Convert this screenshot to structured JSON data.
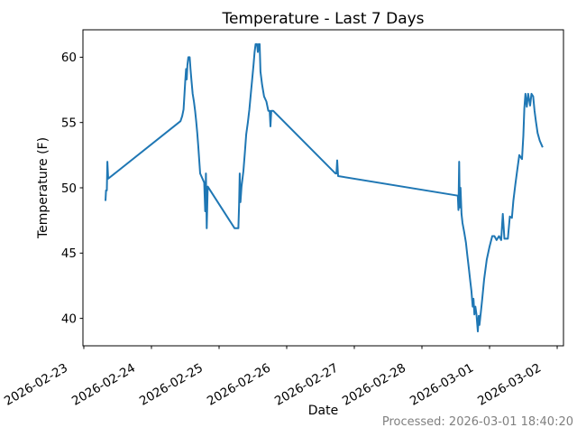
{
  "figure": {
    "title": "Temperature - Last 7 Days",
    "xlabel": "Date",
    "ylabel": "Temperature (F)",
    "annotation": "Processed: 2026-03-01 18:40:20"
  },
  "colors": {
    "line": "#1f77b4",
    "spine": "#000000",
    "text": "#000000",
    "muted_text": "#808080",
    "background": "#ffffff"
  },
  "chart_data": {
    "type": "line",
    "title": "Temperature - Last 7 Days",
    "xlabel": "Date",
    "ylabel": "Temperature (F)",
    "annotation": "Processed: 2026-03-01 18:40:20",
    "grid": false,
    "legend_position": "none",
    "line_color": "#1f77b4",
    "x_unit": "days since 2026-02-23 00:00",
    "x_tick_labels": [
      "2026-02-23",
      "2026-02-24",
      "2026-02-25",
      "2026-02-26",
      "2026-02-27",
      "2026-02-28",
      "2026-03-01",
      "2026-03-02"
    ],
    "x_tick_positions": [
      0,
      1,
      2,
      3,
      4,
      5,
      6,
      7
    ],
    "y_ticks": [
      40,
      45,
      50,
      55,
      60
    ],
    "ylim": [
      37.9,
      62.1
    ],
    "xlim": [
      -0.013,
      7.093
    ],
    "series": [
      {
        "name": "temperature_f",
        "points": [
          [
            0.32,
            49.0
          ],
          [
            0.328,
            49.8
          ],
          [
            0.34,
            49.8
          ],
          [
            0.348,
            52.0
          ],
          [
            0.36,
            50.7
          ],
          [
            1.43,
            55.1
          ],
          [
            1.455,
            55.5
          ],
          [
            1.475,
            56.0
          ],
          [
            1.5,
            58.2
          ],
          [
            1.512,
            59.1
          ],
          [
            1.522,
            58.3
          ],
          [
            1.532,
            59.4
          ],
          [
            1.545,
            60.0
          ],
          [
            1.565,
            60.0
          ],
          [
            1.578,
            59.1
          ],
          [
            1.592,
            58.2
          ],
          [
            1.61,
            57.2
          ],
          [
            1.628,
            56.6
          ],
          [
            1.645,
            55.9
          ],
          [
            1.662,
            55.1
          ],
          [
            1.678,
            54.2
          ],
          [
            1.692,
            53.2
          ],
          [
            1.706,
            52.2
          ],
          [
            1.72,
            51.1
          ],
          [
            1.78,
            50.4
          ],
          [
            1.795,
            48.2
          ],
          [
            1.806,
            51.1
          ],
          [
            1.818,
            46.9
          ],
          [
            1.832,
            50.1
          ],
          [
            2.23,
            46.9
          ],
          [
            2.285,
            46.9
          ],
          [
            2.296,
            48.7
          ],
          [
            2.306,
            51.1
          ],
          [
            2.316,
            48.9
          ],
          [
            2.332,
            50.1
          ],
          [
            2.36,
            51.3
          ],
          [
            2.382,
            52.7
          ],
          [
            2.402,
            54.1
          ],
          [
            2.425,
            55.0
          ],
          [
            2.448,
            56.0
          ],
          [
            2.47,
            57.2
          ],
          [
            2.49,
            58.3
          ],
          [
            2.51,
            59.4
          ],
          [
            2.525,
            60.4
          ],
          [
            2.54,
            61.0
          ],
          [
            2.562,
            61.0
          ],
          [
            2.574,
            60.4
          ],
          [
            2.586,
            61.0
          ],
          [
            2.6,
            61.0
          ],
          [
            2.612,
            58.9
          ],
          [
            2.636,
            57.9
          ],
          [
            2.665,
            57.0
          ],
          [
            2.7,
            56.6
          ],
          [
            2.728,
            55.9
          ],
          [
            2.748,
            55.9
          ],
          [
            2.76,
            54.7
          ],
          [
            2.772,
            55.9
          ],
          [
            2.8,
            55.9
          ],
          [
            3.72,
            51.1
          ],
          [
            3.736,
            51.1
          ],
          [
            3.746,
            52.1
          ],
          [
            3.76,
            50.9
          ],
          [
            5.53,
            49.4
          ],
          [
            5.54,
            48.3
          ],
          [
            5.55,
            52.0
          ],
          [
            5.56,
            48.5
          ],
          [
            5.57,
            50.0
          ],
          [
            5.585,
            48.0
          ],
          [
            5.6,
            47.3
          ],
          [
            5.625,
            46.6
          ],
          [
            5.65,
            45.8
          ],
          [
            5.672,
            44.8
          ],
          [
            5.694,
            43.8
          ],
          [
            5.716,
            42.8
          ],
          [
            5.732,
            42.1
          ],
          [
            5.75,
            40.9
          ],
          [
            5.762,
            41.5
          ],
          [
            5.776,
            40.3
          ],
          [
            5.79,
            40.9
          ],
          [
            5.806,
            40.3
          ],
          [
            5.826,
            39.0
          ],
          [
            5.84,
            40.2
          ],
          [
            5.85,
            39.5
          ],
          [
            5.872,
            40.5
          ],
          [
            5.892,
            41.5
          ],
          [
            5.92,
            43.0
          ],
          [
            5.958,
            44.5
          ],
          [
            6.0,
            45.5
          ],
          [
            6.04,
            46.3
          ],
          [
            6.072,
            46.3
          ],
          [
            6.104,
            46.0
          ],
          [
            6.14,
            46.3
          ],
          [
            6.172,
            46.0
          ],
          [
            6.196,
            48.0
          ],
          [
            6.22,
            46.1
          ],
          [
            6.27,
            46.1
          ],
          [
            6.3,
            47.8
          ],
          [
            6.33,
            47.7
          ],
          [
            6.352,
            49.0
          ],
          [
            6.38,
            50.2
          ],
          [
            6.41,
            51.4
          ],
          [
            6.44,
            52.5
          ],
          [
            6.48,
            52.2
          ],
          [
            6.5,
            54.0
          ],
          [
            6.515,
            56.1
          ],
          [
            6.53,
            57.2
          ],
          [
            6.55,
            56.2
          ],
          [
            6.57,
            57.2
          ],
          [
            6.6,
            56.3
          ],
          [
            6.62,
            57.2
          ],
          [
            6.645,
            57.0
          ],
          [
            6.665,
            55.9
          ],
          [
            6.685,
            55.1
          ],
          [
            6.71,
            54.2
          ],
          [
            6.742,
            53.6
          ],
          [
            6.785,
            53.1
          ]
        ]
      }
    ]
  }
}
